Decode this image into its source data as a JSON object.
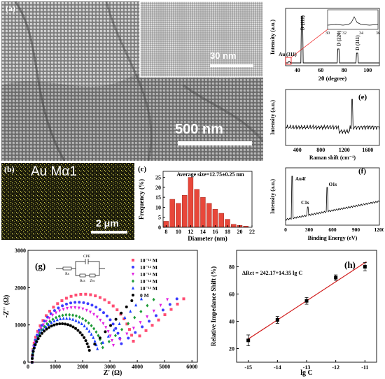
{
  "panels": {
    "a": {
      "tag": "(a)",
      "scalebar": "500 nm",
      "inset_scalebar": "30 nm"
    },
    "b": {
      "tag": "(b)",
      "title": "Au Mα1",
      "scalebar": "2 μm"
    }
  },
  "chart_data": [
    {
      "id": "c",
      "type": "bar",
      "tag": "(c)",
      "title": "Average size=12.75±0.25 nm",
      "xlabel": "Diameter (nm)",
      "ylabel": "Frequency (%)",
      "xticks": [
        "8",
        "10",
        "12",
        "14",
        "16",
        "18",
        "20",
        "22"
      ],
      "yticks": [
        "0",
        "5",
        "10",
        "15",
        "20",
        "25"
      ],
      "xlim": [
        7.5,
        22
      ],
      "ylim": [
        0,
        28
      ],
      "categories": [
        8,
        9,
        10,
        11,
        12,
        13,
        14,
        15,
        16,
        17,
        18,
        19,
        20,
        21
      ],
      "values": [
        3,
        14,
        12,
        16,
        25,
        19,
        15,
        12,
        9,
        7,
        4,
        1.5,
        1,
        0.6
      ],
      "bar_color": "#e8473a"
    },
    {
      "id": "d",
      "type": "line",
      "tag": "(d)",
      "xlabel": "2θ (degree)",
      "ylabel": "Intensity (a.u.)",
      "xticks": [
        "40",
        "60",
        "80",
        "100"
      ],
      "xlim": [
        30,
        110
      ],
      "peaks": [
        {
          "label": "Au (311)",
          "x": 33
        },
        {
          "label": "D (111)",
          "x": 44
        },
        {
          "label": "D (220)",
          "x": 75
        },
        {
          "label": "D (311)",
          "x": 91
        }
      ],
      "inset": {
        "xticks": [
          "30",
          "32",
          "34",
          "36"
        ],
        "xlim": [
          30,
          36
        ]
      }
    },
    {
      "id": "e",
      "type": "line",
      "tag": "(e)",
      "xlabel": "Raman shift (cm⁻¹)",
      "ylabel": "Intensity (a.u.)",
      "xticks": [
        "400",
        "800",
        "1200",
        "1600"
      ],
      "xlim": [
        200,
        1800
      ]
    },
    {
      "id": "f",
      "type": "line",
      "tag": "(f)",
      "xlabel": "Binding Energy (eV)",
      "ylabel": "Intensity (a.u.)",
      "xticks": [
        "0",
        "300",
        "600",
        "900",
        "1200"
      ],
      "xlim": [
        0,
        1200
      ],
      "peaks": [
        {
          "label": "C1s",
          "x": 285
        },
        {
          "label": "Au4f",
          "x": 84
        },
        {
          "label": "O1s",
          "x": 532
        }
      ]
    },
    {
      "id": "g",
      "type": "scatter",
      "tag": "(g)",
      "xlabel": "Z' (Ω)",
      "ylabel": "-Z'' (Ω)",
      "xticks": [
        "0",
        "1000",
        "2000",
        "3000",
        "4000",
        "5000",
        "6000"
      ],
      "yticks": [
        "0",
        "1000",
        "2000",
        "3000"
      ],
      "xlim": [
        0,
        6200
      ],
      "ylim": [
        0,
        3000
      ],
      "circuit_labels": {
        "cpe": "CPE",
        "rs": "Rs",
        "rct": "Rct",
        "zw": "Zw"
      },
      "series": [
        {
          "name": "10⁻¹¹ M",
          "color": "#ff4d73",
          "shape": "square",
          "r0": 2700,
          "d": 3800,
          "warburg_end": [
            5700,
            1700
          ]
        },
        {
          "name": "10⁻¹² M",
          "color": "#3b3bff",
          "shape": "circle",
          "r0": 2450,
          "d": 3350,
          "warburg_end": [
            5450,
            1700
          ]
        },
        {
          "name": "10⁻¹³ M",
          "color": "#e020e0",
          "shape": "triangle-down",
          "r0": 2200,
          "d": 3050,
          "warburg_end": [
            5100,
            1680
          ]
        },
        {
          "name": "10⁻¹⁴ M",
          "color": "#1d9b36",
          "shape": "diamond",
          "r0": 2050,
          "d": 2650,
          "warburg_end": [
            4600,
            1680
          ]
        },
        {
          "name": "10⁻¹⁵ M",
          "color": "#1a3dff",
          "shape": "triangle-up",
          "r0": 1800,
          "d": 2450,
          "warburg_end": [
            4150,
            1700
          ]
        },
        {
          "name": "0 M",
          "color": "#000000",
          "shape": "circle",
          "r0": 1500,
          "d": 2150,
          "warburg_end": [
            3800,
            1650
          ]
        }
      ]
    },
    {
      "id": "h",
      "type": "scatter",
      "tag": "(h)",
      "xlabel": "lg C",
      "ylabel": "Relative Impedance Shift (%)",
      "annotation": "ΔRct = 242.17+14.35 lg C",
      "xticks": [
        "-15",
        "-14",
        "-13",
        "-12",
        "-11"
      ],
      "yticks": [
        "20",
        "40",
        "60",
        "80"
      ],
      "xlim": [
        -15.4,
        -10.6
      ],
      "ylim": [
        10,
        92
      ],
      "x": [
        -15,
        -14,
        -13,
        -12,
        -11
      ],
      "y": [
        26,
        41,
        55,
        72,
        80
      ],
      "yerr": [
        4,
        2.5,
        2.5,
        2,
        3
      ],
      "fit": {
        "slope": 14.35,
        "intercept": 242.17,
        "color": "#d11a1a"
      }
    }
  ]
}
